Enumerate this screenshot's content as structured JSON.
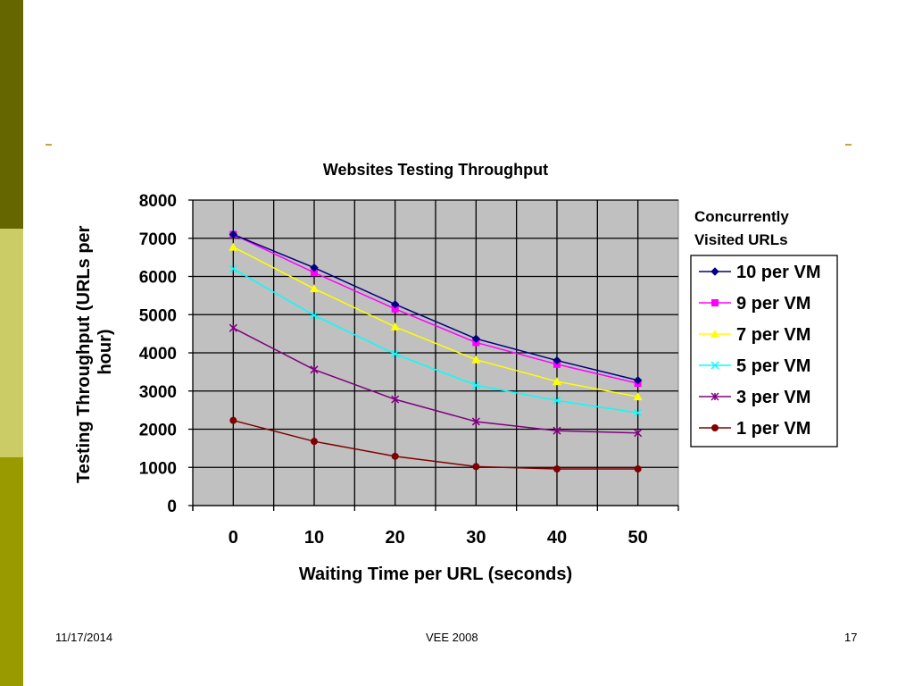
{
  "footer": {
    "date": "11/17/2014",
    "center": "VEE 2008",
    "page": "17"
  },
  "colors": {
    "band_dark": "#666600",
    "band_light": "#cccc66",
    "band_mid": "#999900",
    "plot_bg": "#c0c0c0"
  },
  "chart_data": {
    "type": "line",
    "title": "Websites Testing Throughput",
    "xlabel": "Waiting Time per URL (seconds)",
    "ylabel": "Testing Throughput (URLs per hour)",
    "x": [
      0,
      10,
      20,
      30,
      40,
      50
    ],
    "ylim": [
      0,
      8000
    ],
    "yticks": [
      0,
      1000,
      2000,
      3000,
      4000,
      5000,
      6000,
      7000,
      8000
    ],
    "grid": true,
    "legend_title": "Concurrently Visited URLs",
    "legend_position": "right",
    "series": [
      {
        "name": "10 per VM",
        "color": "#000080",
        "marker": "diamond",
        "values": [
          7100,
          6230,
          5270,
          4370,
          3800,
          3280
        ]
      },
      {
        "name": "9 per VM",
        "color": "#ff00ff",
        "marker": "square",
        "values": [
          7100,
          6100,
          5150,
          4270,
          3700,
          3200
        ]
      },
      {
        "name": "7 per VM",
        "color": "#ffff00",
        "marker": "triangle",
        "values": [
          6770,
          5680,
          4680,
          3820,
          3250,
          2850
        ]
      },
      {
        "name": "5 per VM",
        "color": "#00ffff",
        "marker": "x",
        "values": [
          6200,
          4980,
          3970,
          3150,
          2750,
          2430
        ]
      },
      {
        "name": "3 per VM",
        "color": "#800080",
        "marker": "star",
        "values": [
          4650,
          3560,
          2780,
          2200,
          1960,
          1900
        ]
      },
      {
        "name": "1 per VM",
        "color": "#800000",
        "marker": "circle",
        "values": [
          2230,
          1680,
          1290,
          1020,
          960,
          960
        ]
      }
    ]
  }
}
